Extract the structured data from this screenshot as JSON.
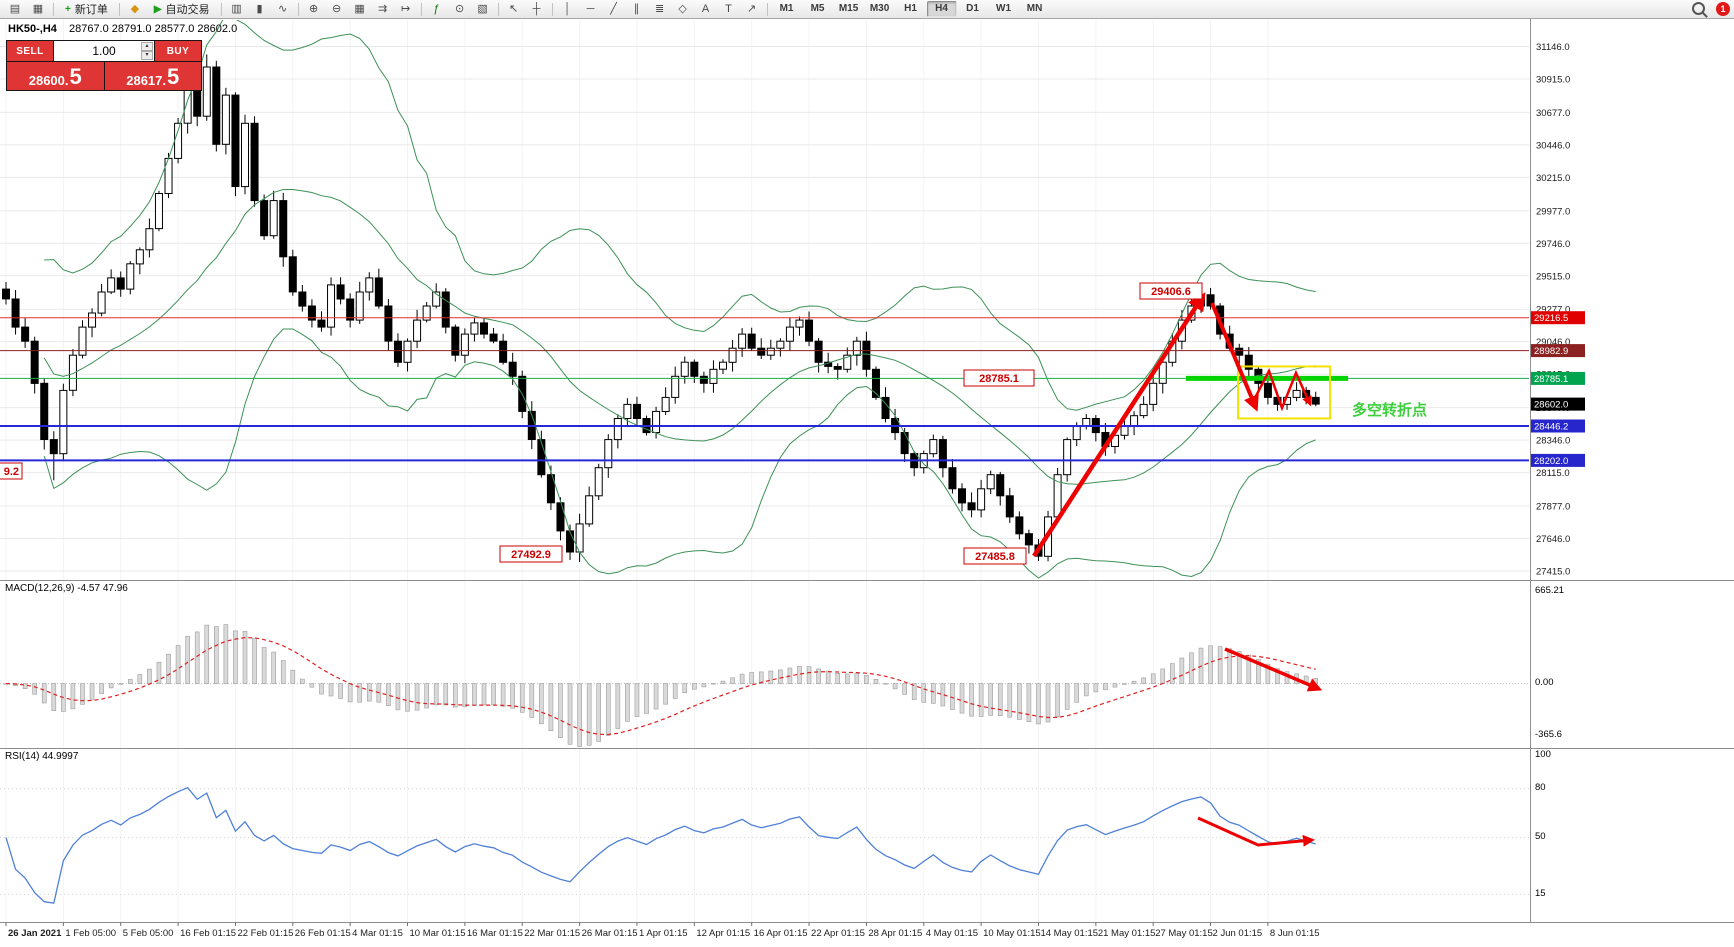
{
  "toolbar": {
    "items": [
      {
        "type": "icon",
        "name": "new-chart-icon",
        "glyph": "▤"
      },
      {
        "type": "icon",
        "name": "chart-profiles-icon",
        "glyph": "▦"
      },
      {
        "type": "sep"
      },
      {
        "type": "button",
        "name": "new-order-button",
        "icon_glyph": "+",
        "icon_color": "#12a012",
        "label": "新订单"
      },
      {
        "type": "sep"
      },
      {
        "type": "icon",
        "name": "expert-advisors-icon",
        "glyph": "◆",
        "color": "#d79410"
      },
      {
        "type": "button",
        "name": "auto-trading-button",
        "icon_glyph": "▶",
        "icon_color": "#1da01d",
        "label": "自动交易"
      },
      {
        "type": "sep"
      },
      {
        "type": "icon",
        "name": "bar-chart-mode-icon",
        "glyph": "▥"
      },
      {
        "type": "icon",
        "name": "candlestick-mode-icon",
        "glyph": "▮"
      },
      {
        "type": "icon",
        "name": "line-chart-mode-icon",
        "glyph": "∿"
      },
      {
        "type": "sep"
      },
      {
        "type": "icon",
        "name": "zoom-in-icon",
        "glyph": "⊕"
      },
      {
        "type": "icon",
        "name": "zoom-out-icon",
        "glyph": "⊖"
      },
      {
        "type": "icon",
        "name": "tile-windows-icon",
        "glyph": "▦"
      },
      {
        "type": "icon",
        "name": "auto-scroll-icon",
        "glyph": "⇉"
      },
      {
        "type": "icon",
        "name": "chart-shift-icon",
        "glyph": "↦"
      },
      {
        "type": "sep"
      },
      {
        "type": "icon",
        "name": "indicators-icon",
        "glyph": "ƒ",
        "color": "#0a7a0a"
      },
      {
        "type": "icon",
        "name": "periods-icon",
        "glyph": "⊙"
      },
      {
        "type": "icon",
        "name": "templates-icon",
        "glyph": "▧"
      },
      {
        "type": "sep"
      },
      {
        "type": "icon",
        "name": "cursor-icon",
        "glyph": "↖"
      },
      {
        "type": "icon",
        "name": "crosshair-icon",
        "glyph": "┼"
      },
      {
        "type": "sep"
      },
      {
        "type": "icon",
        "name": "vertical-line-icon",
        "glyph": "│"
      },
      {
        "type": "icon",
        "name": "horizontal-line-icon",
        "glyph": "─"
      },
      {
        "type": "icon",
        "name": "trendline-icon",
        "glyph": "╱"
      },
      {
        "type": "icon",
        "name": "channel-icon",
        "glyph": "∥"
      },
      {
        "type": "icon",
        "name": "fibonacci-icon",
        "glyph": "≣"
      },
      {
        "type": "icon",
        "name": "shapes-icon",
        "glyph": "◇"
      },
      {
        "type": "icon",
        "name": "text-icon",
        "glyph": "A"
      },
      {
        "type": "icon",
        "name": "label-icon",
        "glyph": "T"
      },
      {
        "type": "icon",
        "name": "arrows-icon",
        "glyph": "↗"
      },
      {
        "type": "sep"
      },
      {
        "type": "tf",
        "label": "M1"
      },
      {
        "type": "tf",
        "label": "M5"
      },
      {
        "type": "tf",
        "label": "M15"
      },
      {
        "type": "tf",
        "label": "M30"
      },
      {
        "type": "tf",
        "label": "H1"
      },
      {
        "type": "tf",
        "label": "H4",
        "pressed": true
      },
      {
        "type": "tf",
        "label": "D1"
      },
      {
        "type": "tf",
        "label": "W1"
      },
      {
        "type": "tf",
        "label": "MN"
      },
      {
        "type": "spacer"
      },
      {
        "type": "search",
        "name": "search-icon"
      },
      {
        "type": "badge",
        "name": "notification-badge",
        "label": "1"
      }
    ]
  },
  "chart": {
    "symbol_title": "HK50-,H4",
    "ohlc_line": "28767.0 28791.0 28577.0 28602.0",
    "trade_panel": {
      "sell_label": "SELL",
      "buy_label": "BUY",
      "volume": "1.00",
      "sell_price_big": "28600.",
      "sell_price_sup": "5",
      "buy_price_big": "28617.",
      "buy_price_sup": "5"
    },
    "price_axis": {
      "labels": [
        31146.0,
        30915.0,
        30677.0,
        30446.0,
        30215.0,
        29977.0,
        29746.0,
        29515.0,
        29277.0,
        29046.0,
        28815.0,
        28577.0,
        28346.0,
        28115.0,
        27877.0,
        27646.0,
        27415.0
      ],
      "tags": [
        {
          "text": "29216.5",
          "price": 29216.5,
          "bg": "#e00000"
        },
        {
          "text": "28982.9",
          "price": 28982.9,
          "bg": "#8b2121"
        },
        {
          "text": "28785.1",
          "price": 28785.1,
          "bg": "#00a44e"
        },
        {
          "text": "28602.0",
          "price": 28602.0,
          "bg": "#000000"
        },
        {
          "text": "28446.2",
          "price": 28446.2,
          "bg": "#2626cc"
        },
        {
          "text": "28202.0",
          "price": 28202.0,
          "bg": "#2626cc"
        }
      ]
    },
    "hlines": [
      {
        "price": 29216.5,
        "color": "#e03030",
        "w": 1
      },
      {
        "price": 28982.9,
        "color": "#8b2121",
        "w": 1
      },
      {
        "price": 28785.1,
        "color": "#16b04a",
        "w": 1
      },
      {
        "price": 28446.2,
        "color": "#2828d8",
        "w": 2
      },
      {
        "price": 28202.0,
        "color": "#2828d8",
        "w": 2
      }
    ],
    "annotations": {
      "peak_label": "29406.6",
      "level_label": "28785.1",
      "march_low_label": "27492.9",
      "may_low_label": "27485.8",
      "clipped_left_label": "9.2",
      "turning_point_text": "多空转折点",
      "turning_point_color": "#3ecf3e"
    }
  },
  "macd": {
    "title": "MACD(12,26,9) -4.57 47.96",
    "scale_top": "665.21",
    "scale_zero": "0.00",
    "scale_bottom": "-365.6"
  },
  "rsi": {
    "title": "RSI(14) 44.9997",
    "scale": [
      "100",
      "80",
      "50",
      "15"
    ]
  },
  "time_axis": {
    "labels": [
      "26 Jan 2021",
      "1 Feb 05:00",
      "5 Feb 05:00",
      "16 Feb 01:15",
      "22 Feb 01:15",
      "26 Feb 01:15",
      "4 Mar 01:15",
      "10 Mar 01:15",
      "16 Mar 01:15",
      "22 Mar 01:15",
      "26 Mar 01:15",
      "1 Apr 01:15",
      "12 Apr 01:15",
      "16 Apr 01:15",
      "22 Apr 01:15",
      "28 Apr 01:15",
      "4 May 01:15",
      "10 May 01:15",
      "14 May 01:15",
      "21 May 01:15",
      "27 May 01:15",
      "2 Jun 01:15",
      "8 Jun 01:15"
    ]
  },
  "chart_data": {
    "type": "candlestick",
    "symbol": "HK50-",
    "timeframe": "H4",
    "current_ohlc": {
      "open": 28767.0,
      "high": 28791.0,
      "low": 28577.0,
      "close": 28602.0
    },
    "bid": 28600.5,
    "ask": 28617.5,
    "closes": [
      29350,
      29150,
      29050,
      28750,
      28350,
      28250,
      28700,
      28950,
      29150,
      29250,
      29400,
      29500,
      29420,
      29600,
      29700,
      29850,
      30100,
      30350,
      30600,
      30850,
      30650,
      31000,
      30450,
      30800,
      30150,
      30600,
      30050,
      29800,
      30050,
      29650,
      29400,
      29300,
      29200,
      29150,
      29450,
      29350,
      29200,
      29400,
      29500,
      29300,
      29050,
      28900,
      29050,
      29200,
      29300,
      29400,
      29150,
      28950,
      29100,
      29180,
      29100,
      29050,
      28900,
      28800,
      28550,
      28350,
      28100,
      27900,
      27700,
      27550,
      27750,
      27950,
      28150,
      28350,
      28500,
      28600,
      28500,
      28400,
      28550,
      28650,
      28800,
      28900,
      28800,
      28750,
      28850,
      28900,
      29000,
      29100,
      29000,
      28950,
      29000,
      29050,
      29150,
      29200,
      29050,
      28900,
      28870,
      28850,
      28950,
      29050,
      28850,
      28650,
      28500,
      28400,
      28250,
      28150,
      28250,
      28350,
      28150,
      28000,
      27900,
      27850,
      28000,
      28100,
      27950,
      27800,
      27680,
      27600,
      27520,
      27800,
      28100,
      28350,
      28450,
      28500,
      28400,
      28300,
      28380,
      28450,
      28520,
      28600,
      28750,
      28900,
      29050,
      29200,
      29300,
      29380,
      29300,
      29100,
      29000,
      28950,
      28850,
      28750,
      28650,
      28600,
      28650,
      28700,
      28650,
      28602
    ],
    "key_extremes": [
      {
        "i": 5,
        "low": 28060
      },
      {
        "i": 21,
        "high": 31090
      },
      {
        "i": 59,
        "low": 27492.9
      },
      {
        "i": 108,
        "low": 27485.8
      },
      {
        "i": 125,
        "high": 29406.6
      }
    ],
    "overlays": [
      {
        "name": "Bollinger Bands",
        "period": 20,
        "deviation": 2
      }
    ],
    "indicators": [
      {
        "name": "MACD",
        "params": [
          12,
          26,
          9
        ],
        "values": [
          -4.57,
          47.96
        ]
      },
      {
        "name": "RSI",
        "params": [
          14
        ],
        "value": 44.9997
      }
    ],
    "levels": [
      29216.5,
      28982.9,
      28785.1,
      28446.2,
      28202.0
    ],
    "annotated_points": {
      "swing_high": 29406.6,
      "march_low": 27492.9,
      "may_low": 27485.8
    }
  }
}
